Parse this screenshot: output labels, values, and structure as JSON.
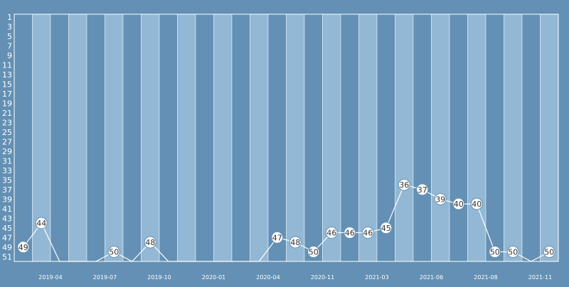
{
  "chart_data": {
    "type": "line",
    "title": "",
    "xlabel": "",
    "ylabel": "",
    "y_reversed": true,
    "ylim": [
      1,
      52
    ],
    "y_ticks": [
      1,
      3,
      5,
      7,
      9,
      11,
      13,
      15,
      17,
      19,
      21,
      23,
      25,
      27,
      29,
      31,
      33,
      35,
      37,
      39,
      41,
      43,
      45,
      47,
      49,
      51
    ],
    "x_tick_labels": [
      "2019-04",
      "2019-07",
      "2019-10",
      "2020-01",
      "2020-04",
      "2020-11",
      "2021-03",
      "2021-06",
      "2021-08",
      "2021-11"
    ],
    "x_tick_label_slots": [
      2,
      5,
      8,
      11,
      14,
      17,
      20,
      23,
      26,
      29
    ],
    "background_color": "#6390b4",
    "band_colors": [
      "#6390b4",
      "#93b8d5"
    ],
    "grid": false,
    "legend": "none",
    "values": [
      49,
      44,
      null,
      null,
      null,
      50,
      null,
      48,
      null,
      null,
      null,
      null,
      null,
      null,
      47,
      48,
      50,
      46,
      46,
      46,
      45,
      36,
      37,
      39,
      40,
      40,
      50,
      50,
      null,
      50
    ],
    "labels_shown": [
      true,
      true,
      false,
      false,
      false,
      true,
      false,
      true,
      false,
      false,
      false,
      false,
      false,
      false,
      true,
      true,
      true,
      true,
      true,
      true,
      true,
      true,
      true,
      true,
      true,
      true,
      true,
      true,
      false,
      true
    ]
  }
}
